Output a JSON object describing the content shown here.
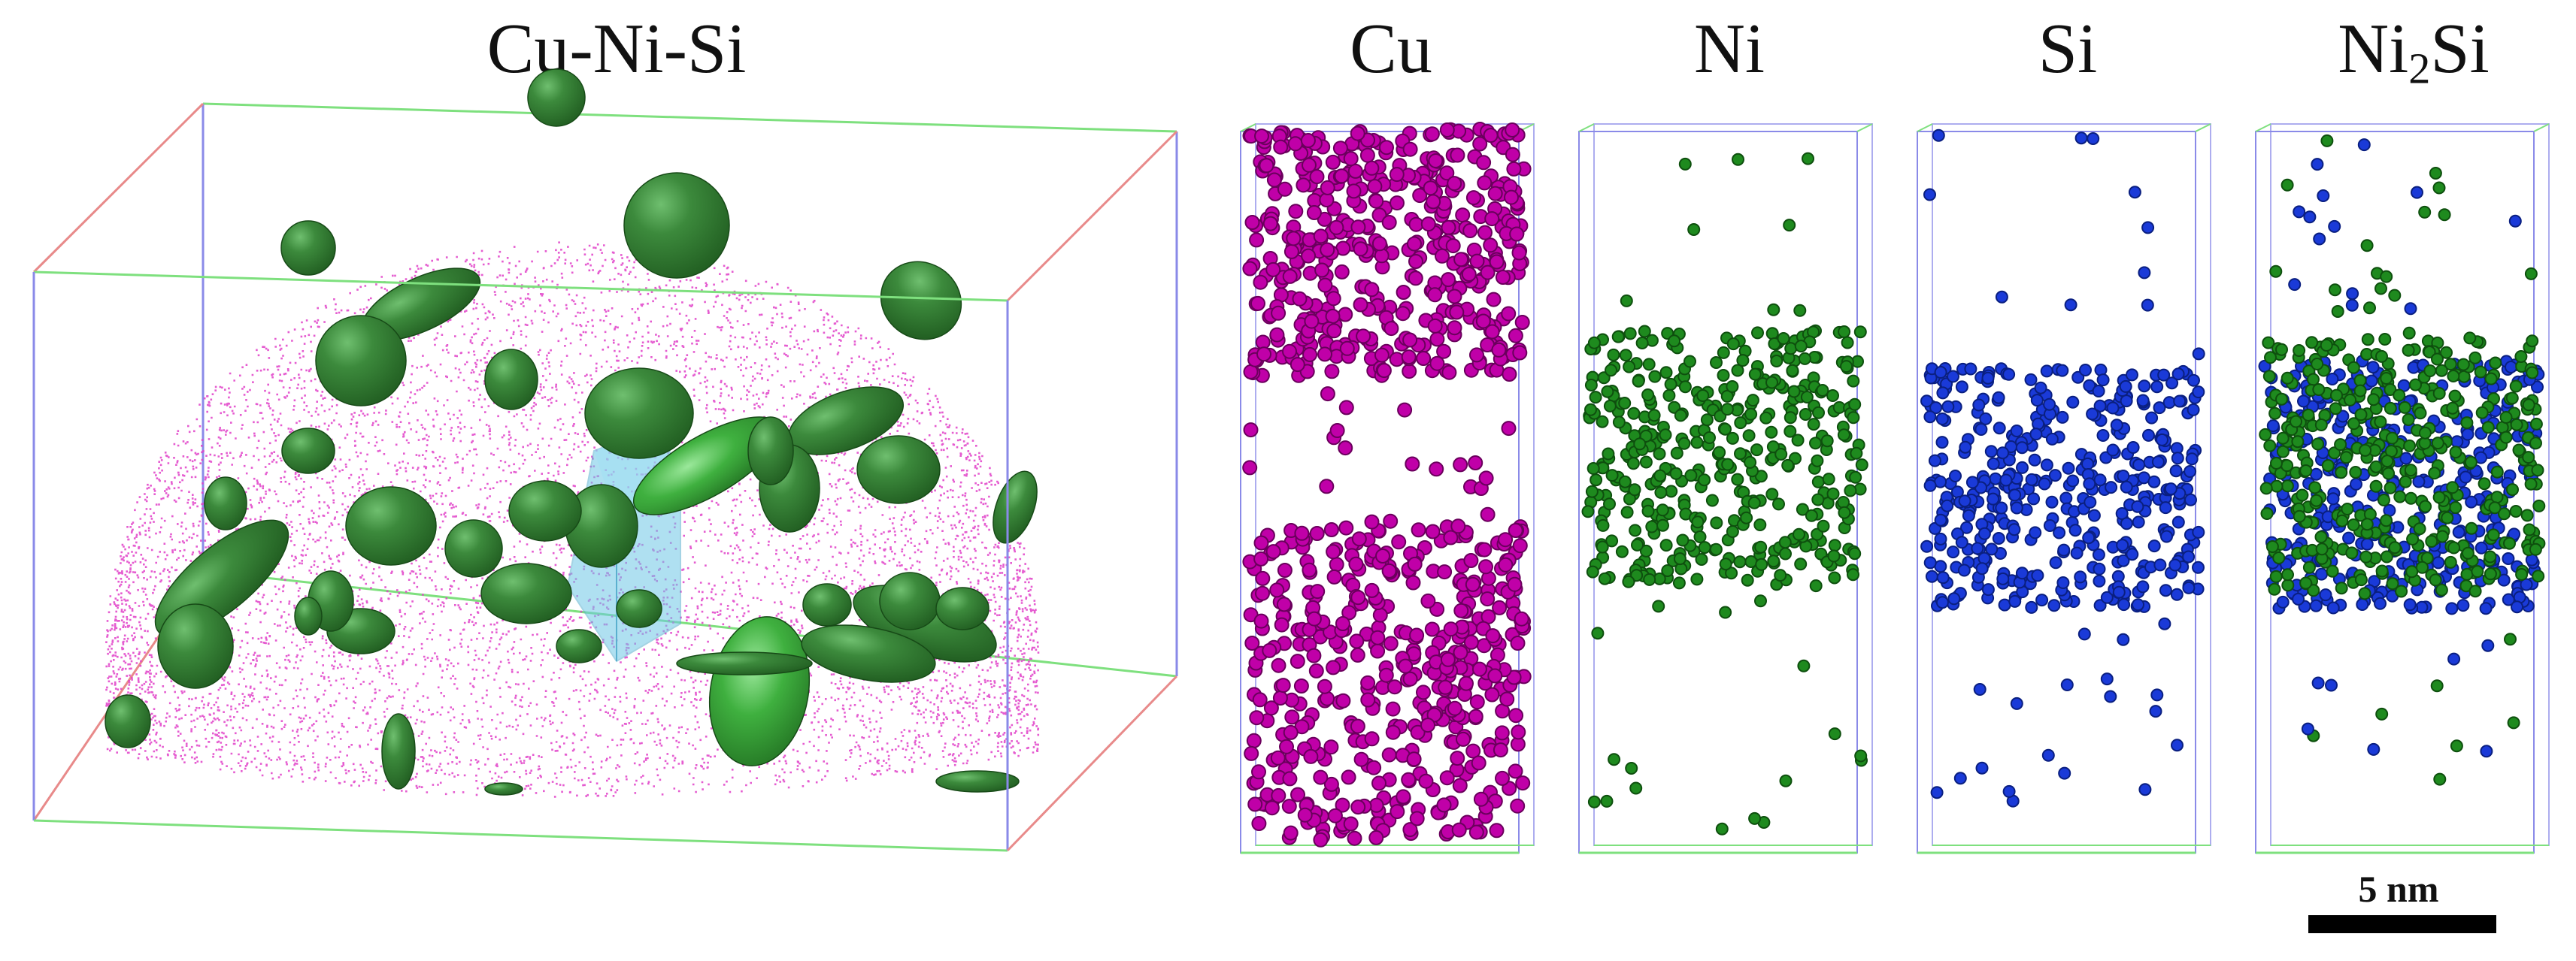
{
  "figure": {
    "main_title": "Cu-Ni-Si",
    "panels": [
      {
        "id": "cu",
        "title": "Cu",
        "color": "#c000a8",
        "edge": "#6a005c"
      },
      {
        "id": "ni",
        "title": "Ni",
        "color": "#1e8a1e",
        "edge": "#0e4f0e"
      },
      {
        "id": "si",
        "title": "Si",
        "color": "#1a3ad8",
        "edge": "#0a1f80"
      },
      {
        "id": "ni2si",
        "title_base": "Ni",
        "title_sub": "2",
        "title_tail": "Si"
      }
    ],
    "scale_bar": {
      "label": "5  nm"
    },
    "colors": {
      "cu_cloud": "#e040c8",
      "precipitate": "#2f7a2f",
      "precipitate_highlight": "#5fc95f",
      "cube": "#6fc8e6",
      "box_red": "#e88a8a",
      "box_green": "#7ee07e",
      "box_blue": "#8a8ae8"
    }
  }
}
